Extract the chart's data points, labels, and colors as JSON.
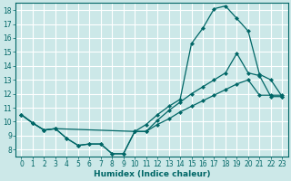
{
  "xlabel": "Humidex (Indice chaleur)",
  "bg_color": "#cce8e8",
  "line_color": "#006666",
  "grid_color": "#ffffff",
  "xlim": [
    -0.5,
    23.5
  ],
  "ylim": [
    7.5,
    18.5
  ],
  "yticks": [
    8,
    9,
    10,
    11,
    12,
    13,
    14,
    15,
    16,
    17,
    18
  ],
  "xticks": [
    0,
    1,
    2,
    3,
    4,
    5,
    6,
    7,
    8,
    9,
    10,
    11,
    12,
    13,
    14,
    15,
    16,
    17,
    18,
    19,
    20,
    21,
    22,
    23
  ],
  "line_top_x": [
    0,
    1,
    2,
    3,
    10,
    11,
    12,
    13,
    14,
    15,
    16,
    17,
    18,
    19,
    20,
    21,
    22,
    23
  ],
  "line_top_y": [
    10.5,
    9.9,
    9.4,
    9.5,
    9.3,
    9.8,
    10.5,
    11.1,
    11.6,
    15.6,
    16.7,
    18.1,
    18.3,
    17.4,
    16.5,
    13.4,
    13.0,
    11.8
  ],
  "line_mid_x": [
    0,
    1,
    2,
    3,
    4,
    5,
    6,
    7,
    8,
    9,
    10,
    11,
    12,
    13,
    14,
    15,
    16,
    17,
    18,
    19,
    20,
    21,
    22,
    23
  ],
  "line_mid_y": [
    10.5,
    9.9,
    9.4,
    9.5,
    8.8,
    8.3,
    8.4,
    8.4,
    7.7,
    7.7,
    9.3,
    9.3,
    10.1,
    10.8,
    11.4,
    12.0,
    12.5,
    13.0,
    13.5,
    14.9,
    13.5,
    13.3,
    11.8,
    11.8
  ],
  "line_bot_x": [
    0,
    1,
    2,
    3,
    4,
    5,
    6,
    7,
    8,
    9,
    10,
    11,
    12,
    13,
    14,
    15,
    16,
    17,
    18,
    19,
    20,
    21,
    22,
    23
  ],
  "line_bot_y": [
    10.5,
    9.9,
    9.4,
    9.5,
    8.8,
    8.3,
    8.4,
    8.4,
    7.7,
    7.7,
    9.3,
    9.3,
    9.8,
    10.2,
    10.7,
    11.1,
    11.5,
    11.9,
    12.3,
    12.7,
    13.0,
    11.9,
    11.9,
    11.9
  ]
}
